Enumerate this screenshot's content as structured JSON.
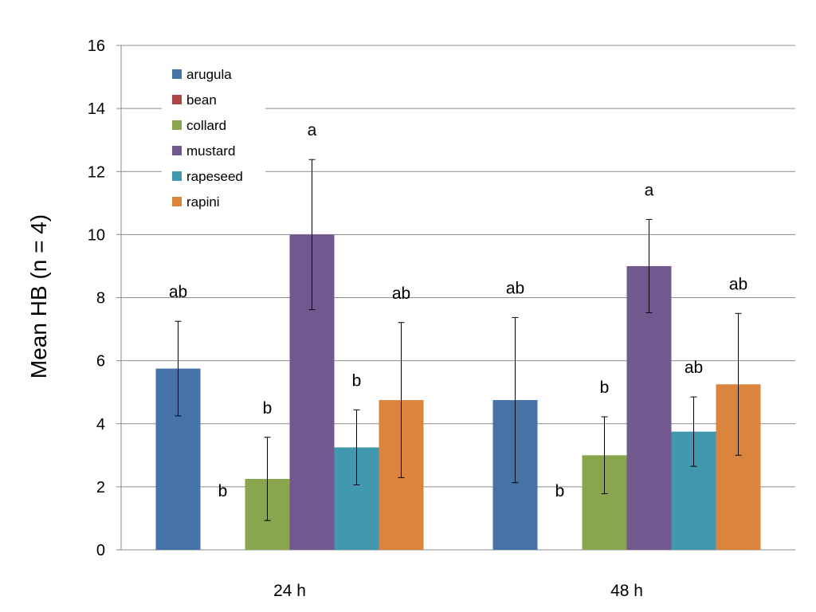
{
  "chart_data": {
    "type": "bar",
    "title": "",
    "xlabel": "",
    "ylabel": "Mean HB  (n = 4)",
    "ylim": [
      0,
      16
    ],
    "yticks": [
      "0",
      "2",
      "4",
      "6",
      "8",
      "10",
      "12",
      "14",
      "16"
    ],
    "grid": true,
    "legend_position": "top-left",
    "categories": [
      "24 h",
      "48 h"
    ],
    "series": [
      {
        "name": "arugula",
        "color": "#4572A7",
        "values": [
          5.75,
          4.75
        ],
        "errors": [
          1.5,
          2.62
        ],
        "letters": [
          "ab",
          "ab"
        ]
      },
      {
        "name": "bean",
        "color": "#AA4643",
        "values": [
          0,
          0
        ],
        "errors": [
          0,
          0
        ],
        "letters": [
          "b",
          "b"
        ]
      },
      {
        "name": "collard",
        "color": "#89A54E",
        "values": [
          2.25,
          3.0
        ],
        "errors": [
          1.32,
          1.22
        ],
        "letters": [
          "b",
          "b"
        ]
      },
      {
        "name": "mustard",
        "color": "#71588F",
        "values": [
          10.0,
          9.0
        ],
        "errors": [
          2.38,
          1.48
        ],
        "letters": [
          "a",
          "a"
        ]
      },
      {
        "name": "rapeseed",
        "color": "#4198AF",
        "values": [
          3.25,
          3.75
        ],
        "errors": [
          1.19,
          1.1
        ],
        "letters": [
          "b",
          "ab"
        ]
      },
      {
        "name": "rapini",
        "color": "#DB843D",
        "values": [
          4.75,
          5.25
        ],
        "errors": [
          2.46,
          2.25
        ],
        "letters": [
          "ab",
          "ab"
        ]
      }
    ]
  }
}
